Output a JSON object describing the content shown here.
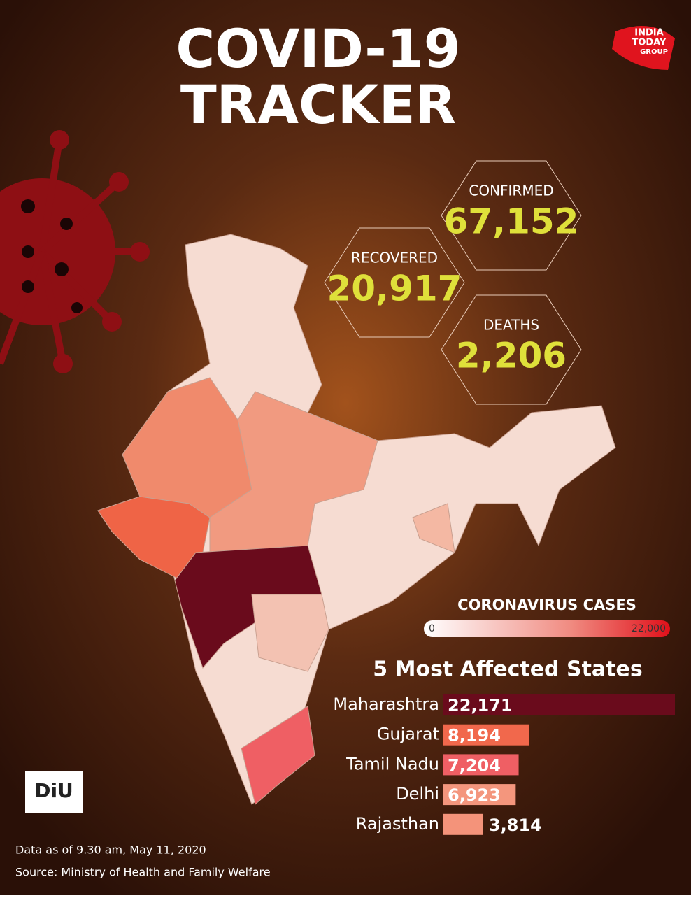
{
  "title_lines": [
    "COVID-19",
    "TRACKER"
  ],
  "logo": {
    "lines": [
      "INDIA",
      "TODAY",
      "GROUP"
    ],
    "unit": "DiU"
  },
  "stats": [
    {
      "label": "CONFIRMED",
      "value": "67,152"
    },
    {
      "label": "RECOVERED",
      "value": "20,917"
    },
    {
      "label": "DEATHS",
      "value": "2,206"
    }
  ],
  "color_scale": {
    "title": "CORONAVIRUS CASES",
    "min": 0,
    "max": {
      "value": 22000,
      "label": "22,000"
    }
  },
  "chart_data": {
    "type": "bar",
    "orientation": "horizontal",
    "title": "5 Most Affected States",
    "categories": [
      "Maharashtra",
      "Gujarat",
      "Tamil Nadu",
      "Delhi",
      "Rajasthan"
    ],
    "values": [
      22171,
      8194,
      7204,
      6923,
      3814
    ],
    "value_labels": [
      "22,171",
      "8,194",
      "7,204",
      "6,923",
      "3,814"
    ],
    "colors": [
      "#6a0b1c",
      "#f1684c",
      "#ef5f64",
      "#f4967d",
      "#f4937a"
    ]
  },
  "footer": [
    "Data as of 9.30 am, May 11, 2020",
    "Source: Ministry of Health and Family Welfare"
  ]
}
